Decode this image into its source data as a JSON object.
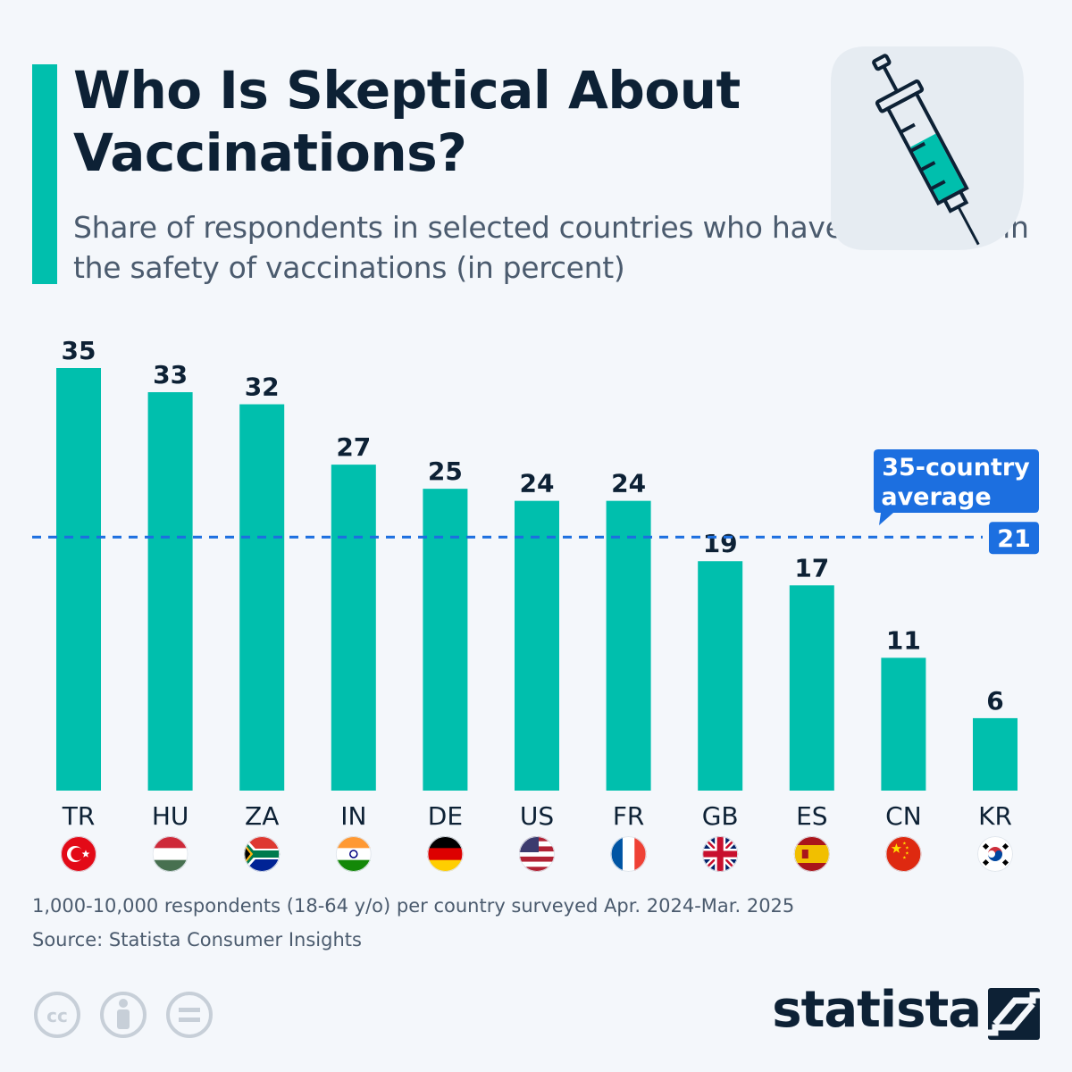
{
  "title": "Who Is Skeptical About Vaccinations?",
  "subtitle": "Share of respondents in selected countries who have little trust in the safety of vaccinations (in percent)",
  "colors": {
    "accent": "#00bfad",
    "bar": "#00bfad",
    "average": "#1c6fe0",
    "text": "#0d2135",
    "muted": "#4b5b6e"
  },
  "illustration": {
    "icon": "syringe-icon"
  },
  "chart_data": {
    "type": "bar",
    "categories": [
      "TR",
      "HU",
      "ZA",
      "IN",
      "DE",
      "US",
      "FR",
      "GB",
      "ES",
      "CN",
      "KR"
    ],
    "values": [
      35,
      33,
      32,
      27,
      25,
      24,
      24,
      19,
      17,
      11,
      6
    ],
    "flags": [
      "turkey-flag-icon",
      "hungary-flag-icon",
      "south-africa-flag-icon",
      "india-flag-icon",
      "germany-flag-icon",
      "usa-flag-icon",
      "france-flag-icon",
      "uk-flag-icon",
      "spain-flag-icon",
      "china-flag-icon",
      "south-korea-flag-icon"
    ],
    "ylim": [
      0,
      35
    ],
    "grid": false,
    "reference_line": {
      "label_line1": "35-country",
      "label_line2": "average",
      "value": 21
    }
  },
  "footer": {
    "note": "1,000-10,000 respondents (18-64 y/o) per country surveyed Apr. 2024-Mar. 2025",
    "source": "Source: Statista Consumer Insights"
  },
  "license_icons": [
    "cc-icon",
    "attribution-icon",
    "no-derivatives-icon"
  ],
  "brand": {
    "name": "statista",
    "icon": "statista-logo-icon"
  }
}
